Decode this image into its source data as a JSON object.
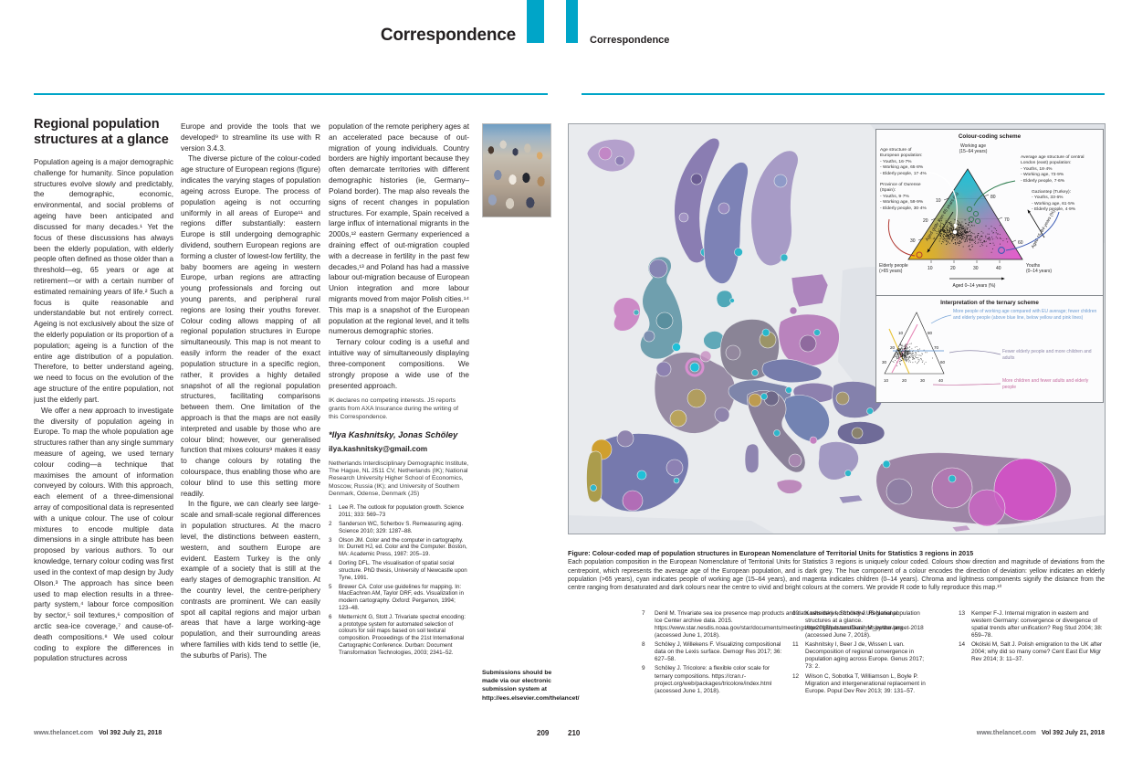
{
  "accent": "#00a5c8",
  "journal": {
    "section_left": "Correspondence",
    "section_right": "Correspondence",
    "footer_site": "www.thelancet.com",
    "footer_issue": "Vol 392   July 21, 2018",
    "page_left": "209",
    "page_right": "210"
  },
  "article": {
    "title": "Regional population structures at a glance",
    "col1": [
      {
        "text": "Population ageing is a major demographic challenge for humanity. Since population structures evolve slowly and predictably, the demographic, economic, environmental, and social problems of ageing have been anticipated and discussed for many decades.¹ Yet the focus of these discussions has always been the elderly population, with elderly people often defined as those older than a threshold—eg, 65 years or age at retirement—or with a certain number of estimated remaining years of life.² Such a focus is quite reasonable and understandable but not entirely correct. Ageing is not exclusively about the size of the elderly population or its proportion of a population; ageing is a function of the entire age distribution of a population. Therefore, to better understand ageing, we need to focus on the evolution of the age structure of the entire population, not just the elderly part."
      },
      {
        "text": "We offer a new approach to investigate the diversity of population ageing in Europe. To map the whole population age structures rather than any single summary measure of ageing, we used ternary colour coding—a technique that maximises the amount of information conveyed by colours. With this approach, each element of a three-dimensional array of compositional data is represented with a unique colour. The use of colour mixtures to encode multiple data dimensions in a single attribute has been proposed by various authors. To our knowledge, ternary colour coding was first used in the context of map design by Judy Olson.³ The approach has since been used to map election results in a three-party system,⁴ labour force composition by sector,⁵ soil textures,⁶ composition of arctic sea-ice coverage,⁷ and cause-of-death compositions.⁸ We used colour coding to explore the differences in population structures across"
      }
    ],
    "col2": [
      {
        "text": "Europe and provide the tools that we developed⁹ to streamline its use with R version 3.4.3."
      },
      {
        "text": "The diverse picture of the colour-coded age structure of European regions (figure) indicates the varying stages of population ageing across Europe. The process of population ageing is not occurring uniformly in all areas of Europe¹¹ and regions differ substantially: eastern Europe is still undergoing demographic dividend, southern European regions are forming a cluster of lowest-low fertility, the baby boomers are ageing in western Europe, urban regions are attracting young professionals and forcing out young parents, and peripheral rural regions are losing their youths forever. Colour coding allows mapping of all regional population structures in Europe simultaneously. This map is not meant to easily inform the reader of the exact population structure in a specific region, rather, it provides a highly detailed snapshot of all the regional population structures, facilitating comparisons between them. One limitation of the approach is that the maps are not easily interpreted and usable by those who are colour blind; however, our generalised function that mixes colours⁹ makes it easy to change colours by rotating the colourspace, thus enabling those who are colour blind to use this setting more readily."
      },
      {
        "text": "In the figure, we can clearly see large-scale and small-scale regional differences in population structures. At the macro level, the distinctions between eastern, western, and southern Europe are evident. Eastern Turkey is the only example of a society that is still at the early stages of demographic transition. At the country level, the centre-periphery contrasts are prominent. We can easily spot all capital regions and major urban areas that have a large working-age population, and their surrounding areas where families with kids tend to settle (ie, the suburbs of Paris). The"
      }
    ],
    "col3": [
      {
        "text": "population of the remote periphery ages at an accelerated pace because of out-migration of young individuals. Country borders are highly important because they often demarcate territories with different demographic histories (ie, Germany–Poland border). The map also reveals the signs of recent changes in population structures. For example, Spain received a large influx of international migrants in the 2000s,¹² eastern Germany experienced a draining effect of out-migration coupled with a decrease in fertility in the past few decades,¹³ and Poland has had a massive labour out-migration because of European Union integration and more labour migrants moved from major Polish cities.¹⁴ This map is a snapshot of the European population at the regional level, and it tells numerous demographic stories."
      },
      {
        "text": "Ternary colour coding is a useful and intuitive way of simultaneously displaying three-component compositions. We strongly propose a wide use of the presented approach."
      }
    ],
    "declaration": "IK declares no competing interests. JS reports grants from AXA Insurance during the writing of this Correspondence.",
    "authors": "*Ilya Kashnitsky, Jonas Schöley",
    "email": "ilya.kashnitsky@gmail.com",
    "affiliations": "Netherlands Interdisciplinary Demographic Institute, The Hague, NL 2511 CV, Netherlands (IK); National Research University Higher School of Economics, Moscow, Russia (IK); and University of Southern Denmark, Odense, Denmark (JS)",
    "references": [
      {
        "n": "1",
        "text": "Lee R. The outlook for population growth. Science 2011; 333: 569–73"
      },
      {
        "n": "2",
        "text": "Sanderson WC, Scherbov S. Remeasuring aging. Science 2010; 329: 1287–88."
      },
      {
        "n": "3",
        "text": "Olson JM. Color and the computer in cartography. In: Durrett HJ, ed. Color and the Computer. Boston, MA: Academic Press, 1987: 205–19."
      },
      {
        "n": "4",
        "text": "Dorling DFL. The visualisation of spatial social structure. PhD thesis, University of Newcastle upon Tyne, 1991."
      },
      {
        "n": "5",
        "text": "Brewer CA. Color use guidelines for mapping. In: MacEachren AM, Taylor DRF, eds. Visualization in modern cartography. Oxford: Pergamon, 1994; 123–48."
      },
      {
        "n": "6",
        "text": "Metternicht G, Stott J. Trivariate spectral encoding: a prototype system for automated selection of colours for soil maps based on soil textural composition. Proceedings of the 21st International Cartographic Conference. Durban: Document Transformation Technologies, 2003; 2341–52."
      }
    ]
  },
  "sidebar": {
    "submission_note": "Submissions should be made via our electronic submission system at",
    "submission_url": "http://ees.elsevier.com/thelancet/"
  },
  "figure": {
    "caption_title": "Figure: Colour-coded map of population structures in European Nomenclature of Territorial Units for Statistics 3 regions in 2015",
    "caption_body": "Each population composition in the European Nomenclature of Territorial Units for Statistics 3 regions is uniquely colour coded. Colours show direction and magnitude of deviations from the centrepoint, which represents the average age of the European population, and is dark grey. The hue component of a colour encodes the direction of deviation: yellow indicates an elderly population (>65 years), cyan indicates people of working age (15–64 years), and magenta indicates children (0–14 years). Chroma and lightness components signify the distance from the centre ranging from desaturated and dark colours near the centre to vivid and bright colours at the corners. We provide R code to fully reproduce this map.¹⁰",
    "legend": {
      "title": "Colour-coding scheme",
      "top_label": "Working age\n(15–64 years)",
      "left_label_1": "Age structure of\nEuropean population:\n- Youths, 16·7%\n- Working age, 65·8%\n- Elderly people, 17·4%",
      "left_label_2": "Province of Ourense\n(Spain):\n- Youths, 9·7%\n- Working age, 59·9%\n- Elderly people, 30·4%",
      "right_label_1": "Average age structure of central\nLondon (east) population:\n- Youths, 18·4%\n- Working age, 73·9%\n- Elderly people, 7·6%",
      "right_label_2": "Gaziantep (Turkey):\n- Youths, 33·6%\n- Working age, 61·5%\n- Elderly people, 4·9%",
      "corner_left": "Elderly people\n(>65 years)",
      "corner_right": "Youths\n(0–14 years)",
      "axis_bottom": "Aged 0–14 years (%)",
      "axis_left": "Aged older than 65 years (%)",
      "axis_right": "Aged 15–64 years (%)",
      "ticks_left": [
        "10",
        "20",
        "30"
      ],
      "ticks_right": [
        "80",
        "70",
        "60"
      ],
      "ticks_bottom": [
        "10",
        "20",
        "30",
        "40"
      ]
    },
    "interpretation": {
      "title": "Interpretation of the ternary scheme",
      "item_blue": "More people of working age compared with EU average; fewer children and elderly people (above blue line, below yellow and pink lines)",
      "item_gray": "Fewer elderly people and more children and adults",
      "item_pink": "More children and fewer adults and elderly people",
      "ticks_left": [
        "10",
        "20",
        "30"
      ],
      "ticks_right": [
        "80",
        "70",
        "60"
      ],
      "ticks_bottom": [
        "10",
        "20",
        "30",
        "40"
      ],
      "colors": {
        "blue": "#6b9bd2",
        "gray": "#8d87a8",
        "pink": "#c4699e",
        "yellow_line": "#e8c235",
        "pink_line": "#e88ab8",
        "blue_line": "#7aa6d9"
      }
    },
    "map_colors": {
      "sea": "#e9ebee",
      "non_nuts": "#dfe2e7",
      "elderly_yellow": "#cf9f2e",
      "working_cyan": "#1fc0d8",
      "children_magenta": "#d44fc6",
      "centre_grey": "#8a8496"
    }
  },
  "refs_right": {
    "colA": [
      {
        "n": "7",
        "text": "Denil M. Trivariate sea ice presence map products and data sets derived from the US National Ice Center archive data. 2015. https://www.star.nesdis.noaa.gov/star/documents/meetings/Ice2015/posters/Denil_M_poster.png (accessed June 1, 2018)."
      },
      {
        "n": "8",
        "text": "Schöley J, Willekens F. Visualizing compositional data on the Lexis surface. Demogr Res 2017; 36: 627–58."
      },
      {
        "n": "9",
        "text": "Schöley J. Tricolore: a flexible color scale for ternary compositions. https://cran.r-project.org/web/packages/tricolore/index.html (accessed June 1, 2018)."
      }
    ],
    "colB": [
      {
        "n": "10",
        "text": "Kashnitsky I, Schöley J. Regional population structures at a glance. https://github.com/ikashnitsky/the-lancet-2018 (accessed June 7, 2018)."
      },
      {
        "n": "11",
        "text": "Kashnitsky I, Beer J de, Wissen L van. Decomposition of regional convergence in population aging across Europe. Genus 2017; 73: 2."
      },
      {
        "n": "12",
        "text": "Wilson C, Sobotka T, Williamson L, Boyle P. Migration and intergenerational replacement in Europe. Popul Dev Rev 2013; 39: 131–57."
      }
    ],
    "colC": [
      {
        "n": "13",
        "text": "Kemper F-J. Internal migration in eastern and western Germany: convergence or divergence of spatial trends after unification? Reg Stud 2004; 38: 659–78."
      },
      {
        "n": "14",
        "text": "Okólski M, Salt J. Polish emigration to the UK after 2004; why did so many come? Cent East Eur Migr Rev 2014; 3: 11–37."
      }
    ]
  }
}
